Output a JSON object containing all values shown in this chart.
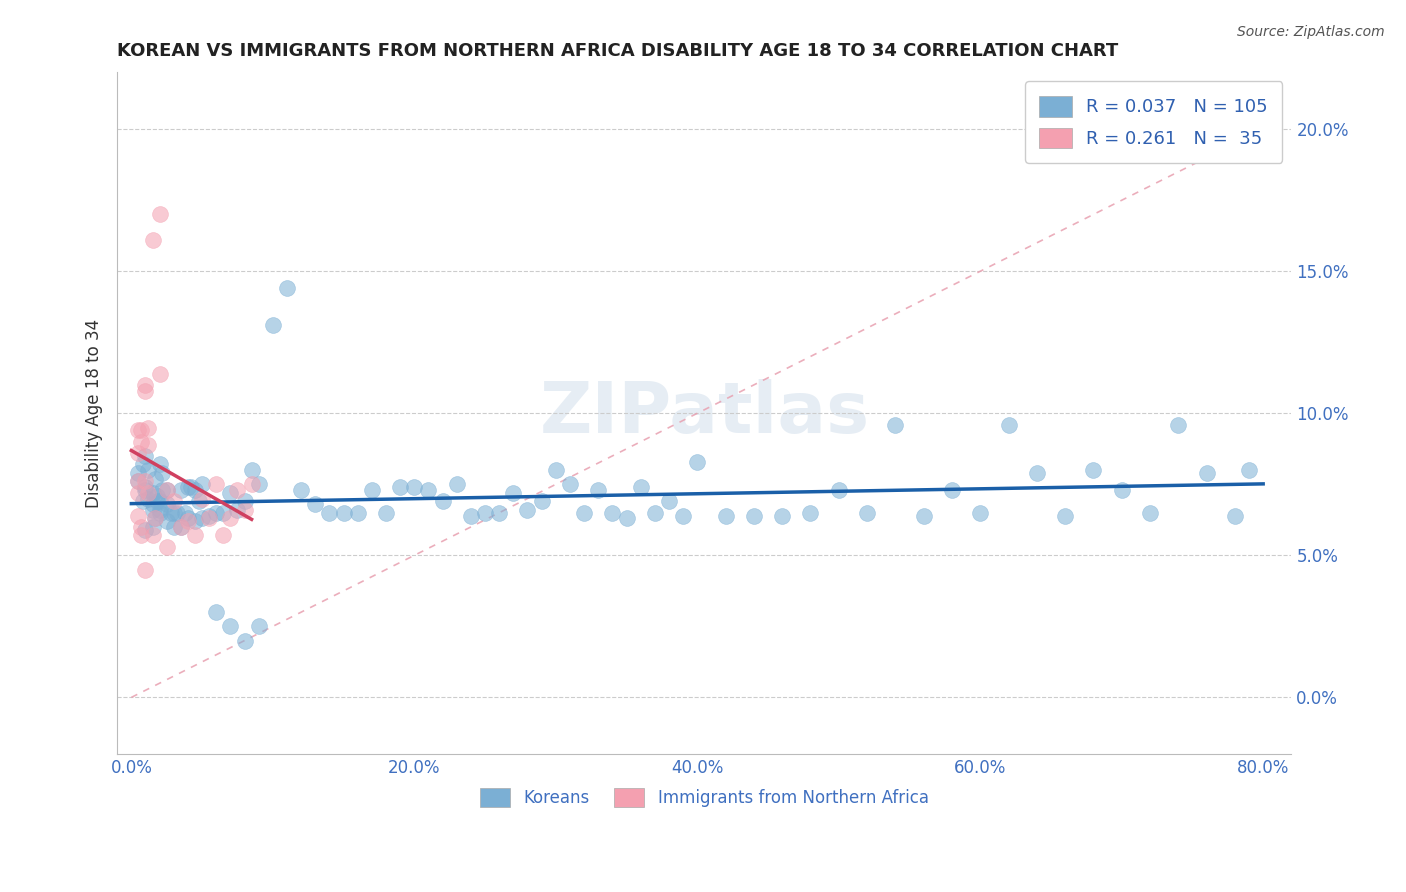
{
  "title": "KOREAN VS IMMIGRANTS FROM NORTHERN AFRICA DISABILITY AGE 18 TO 34 CORRELATION CHART",
  "source": "Source: ZipAtlas.com",
  "xlabel_koreans": "Koreans",
  "xlabel_north_africa": "Immigrants from Northern Africa",
  "ylabel": "Disability Age 18 to 34",
  "r_korean": 0.037,
  "n_korean": 105,
  "r_north_africa": 0.261,
  "n_north_africa": 35,
  "xlim": [
    -0.01,
    0.82
  ],
  "ylim": [
    -0.02,
    0.22
  ],
  "yticks": [
    0.0,
    0.05,
    0.1,
    0.15,
    0.2
  ],
  "xticks": [
    0.0,
    0.2,
    0.4,
    0.6,
    0.8
  ],
  "color_korean": "#7bafd4",
  "color_north_africa": "#f4a0b0",
  "trend_color_korean": "#1a5fa8",
  "trend_color_north_africa": "#d04060",
  "diagonal_color": "#e8a0b0",
  "title_color": "#222222",
  "axis_label_color": "#4070c0",
  "legend_text_color": "#3060b0",
  "background_color": "#ffffff",
  "korean_x": [
    0.005,
    0.005,
    0.008,
    0.008,
    0.01,
    0.01,
    0.01,
    0.012,
    0.012,
    0.015,
    0.015,
    0.015,
    0.017,
    0.017,
    0.018,
    0.018,
    0.02,
    0.02,
    0.02,
    0.022,
    0.022,
    0.025,
    0.025,
    0.028,
    0.03,
    0.032,
    0.035,
    0.038,
    0.04,
    0.042,
    0.045,
    0.048,
    0.05,
    0.055,
    0.06,
    0.065,
    0.07,
    0.075,
    0.08,
    0.085,
    0.09,
    0.1,
    0.11,
    0.12,
    0.13,
    0.14,
    0.15,
    0.16,
    0.17,
    0.18,
    0.19,
    0.2,
    0.21,
    0.22,
    0.23,
    0.24,
    0.25,
    0.26,
    0.27,
    0.28,
    0.29,
    0.3,
    0.31,
    0.32,
    0.33,
    0.34,
    0.35,
    0.36,
    0.37,
    0.38,
    0.39,
    0.4,
    0.42,
    0.44,
    0.46,
    0.48,
    0.5,
    0.52,
    0.54,
    0.56,
    0.58,
    0.6,
    0.62,
    0.64,
    0.66,
    0.68,
    0.7,
    0.72,
    0.74,
    0.76,
    0.78,
    0.79,
    0.01,
    0.015,
    0.02,
    0.025,
    0.03,
    0.035,
    0.04,
    0.045,
    0.05,
    0.06,
    0.07,
    0.08,
    0.09
  ],
  "korean_y": [
    0.079,
    0.076,
    0.082,
    0.069,
    0.073,
    0.085,
    0.074,
    0.07,
    0.08,
    0.066,
    0.072,
    0.068,
    0.063,
    0.077,
    0.069,
    0.071,
    0.066,
    0.082,
    0.069,
    0.073,
    0.079,
    0.073,
    0.068,
    0.065,
    0.065,
    0.065,
    0.073,
    0.065,
    0.074,
    0.074,
    0.073,
    0.069,
    0.075,
    0.064,
    0.065,
    0.065,
    0.072,
    0.066,
    0.069,
    0.08,
    0.075,
    0.131,
    0.144,
    0.073,
    0.068,
    0.065,
    0.065,
    0.065,
    0.073,
    0.065,
    0.074,
    0.074,
    0.073,
    0.069,
    0.075,
    0.064,
    0.065,
    0.065,
    0.072,
    0.066,
    0.069,
    0.08,
    0.075,
    0.065,
    0.073,
    0.065,
    0.063,
    0.074,
    0.065,
    0.069,
    0.064,
    0.083,
    0.064,
    0.064,
    0.064,
    0.065,
    0.073,
    0.065,
    0.096,
    0.064,
    0.073,
    0.065,
    0.096,
    0.079,
    0.064,
    0.08,
    0.073,
    0.065,
    0.096,
    0.079,
    0.064,
    0.08,
    0.059,
    0.06,
    0.065,
    0.062,
    0.06,
    0.06,
    0.063,
    0.062,
    0.063,
    0.03,
    0.025,
    0.02,
    0.025
  ],
  "north_africa_x": [
    0.005,
    0.005,
    0.005,
    0.005,
    0.005,
    0.007,
    0.007,
    0.007,
    0.007,
    0.01,
    0.01,
    0.01,
    0.012,
    0.012,
    0.012,
    0.015,
    0.015,
    0.017,
    0.02,
    0.02,
    0.025,
    0.025,
    0.03,
    0.035,
    0.04,
    0.045,
    0.05,
    0.055,
    0.06,
    0.065,
    0.07,
    0.075,
    0.08,
    0.085,
    0.01
  ],
  "north_africa_y": [
    0.076,
    0.072,
    0.086,
    0.094,
    0.064,
    0.06,
    0.057,
    0.094,
    0.09,
    0.11,
    0.108,
    0.076,
    0.095,
    0.089,
    0.072,
    0.057,
    0.161,
    0.063,
    0.17,
    0.114,
    0.073,
    0.053,
    0.069,
    0.06,
    0.062,
    0.057,
    0.07,
    0.063,
    0.075,
    0.057,
    0.063,
    0.073,
    0.066,
    0.075,
    0.045
  ]
}
